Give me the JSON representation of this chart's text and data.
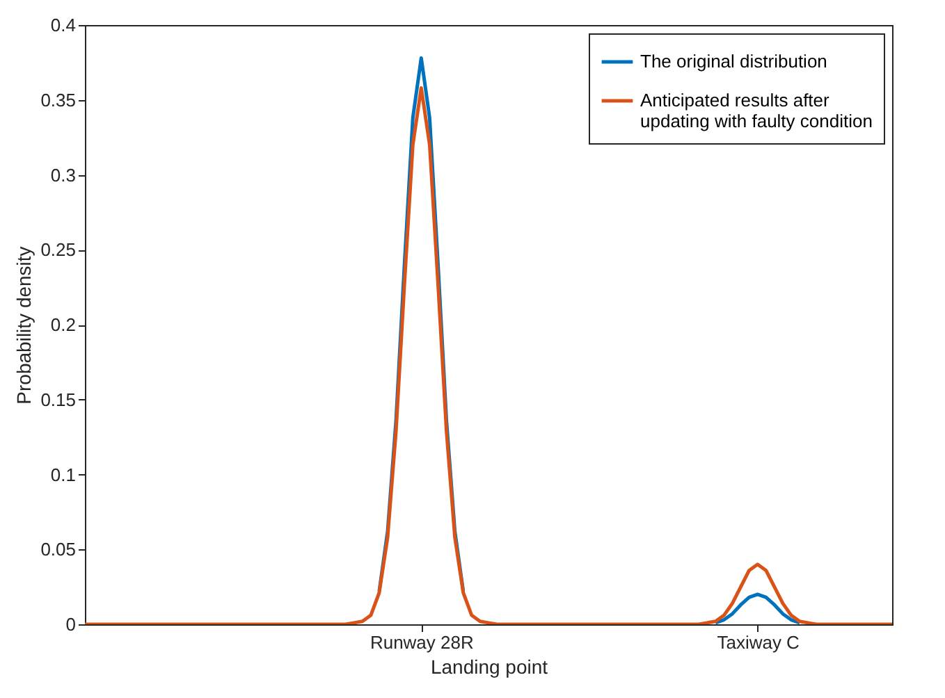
{
  "chart_data": {
    "type": "line",
    "xlabel": "Landing point",
    "ylabel": "Probability density",
    "categories": [
      null,
      null,
      null,
      null,
      null,
      null,
      null,
      null,
      null,
      null,
      null,
      null,
      null,
      null,
      null,
      null,
      null,
      null,
      null,
      null,
      null,
      null,
      null,
      null,
      null,
      null,
      null,
      null,
      null,
      null,
      null,
      null,
      null,
      null,
      null,
      null,
      null,
      null,
      null,
      null,
      "Runway 28R",
      null,
      null,
      null,
      null,
      null,
      null,
      null,
      null,
      null,
      null,
      null,
      null,
      null,
      null,
      null,
      null,
      null,
      null,
      null,
      null,
      null,
      null,
      null,
      null,
      null,
      null,
      null,
      null,
      null,
      null,
      null,
      null,
      null,
      null,
      null,
      null,
      null,
      null,
      null,
      "Taxiway C",
      null,
      null,
      null,
      null,
      null,
      null,
      null,
      null,
      null,
      null,
      null,
      null,
      null,
      null,
      null,
      null
    ],
    "series": [
      {
        "name": "The original distribution",
        "color": "#0072bd",
        "values": [
          null,
          null,
          null,
          null,
          null,
          null,
          null,
          null,
          null,
          null,
          null,
          null,
          null,
          null,
          null,
          null,
          null,
          null,
          null,
          null,
          null,
          null,
          null,
          null,
          null,
          null,
          null,
          null,
          null,
          null,
          null,
          null,
          null,
          null,
          null,
          0.022,
          0.062,
          0.136,
          0.24,
          0.338,
          0.378,
          0.338,
          0.24,
          0.136,
          0.062,
          0.022,
          null,
          null,
          null,
          null,
          null,
          null,
          null,
          null,
          null,
          null,
          null,
          null,
          null,
          null,
          null,
          null,
          null,
          null,
          null,
          null,
          null,
          null,
          null,
          null,
          null,
          null,
          null,
          null,
          null,
          0.001,
          0.003,
          0.007,
          0.013,
          0.018,
          0.02,
          0.018,
          0.013,
          0.007,
          0.003,
          0.001,
          null,
          null,
          null,
          null,
          null,
          null,
          null,
          null,
          null,
          null,
          null
        ]
      },
      {
        "name": "Anticipated results after updating with faulty condition",
        "color": "#d95319",
        "values": [
          0,
          0,
          0,
          0,
          0,
          0,
          0,
          0,
          0,
          0,
          0,
          0,
          0,
          0,
          0,
          0,
          0,
          0,
          0,
          0,
          0,
          0,
          0,
          0,
          0,
          0,
          0,
          0,
          0,
          0,
          0,
          0,
          0.001,
          0.002,
          0.006,
          0.021,
          0.058,
          0.129,
          0.227,
          0.32,
          0.358,
          0.32,
          0.227,
          0.129,
          0.058,
          0.021,
          0.006,
          0.002,
          0.001,
          0,
          0,
          0,
          0,
          0,
          0,
          0,
          0,
          0,
          0,
          0,
          0,
          0,
          0,
          0,
          0,
          0,
          0,
          0,
          0,
          0,
          0,
          0,
          0,
          0,
          0.001,
          0.002,
          0.006,
          0.014,
          0.025,
          0.036,
          0.04,
          0.036,
          0.025,
          0.014,
          0.006,
          0.002,
          0.001,
          0,
          0,
          0,
          0,
          0,
          0,
          0,
          0,
          0,
          0
        ]
      }
    ],
    "ylim": [
      0,
      0.4
    ],
    "yticks": [
      0,
      0.05,
      0.1,
      0.15,
      0.2,
      0.25,
      0.3,
      0.35,
      0.4
    ],
    "grid": false,
    "legend": "top right",
    "line_style": "solid",
    "marker": "none"
  }
}
